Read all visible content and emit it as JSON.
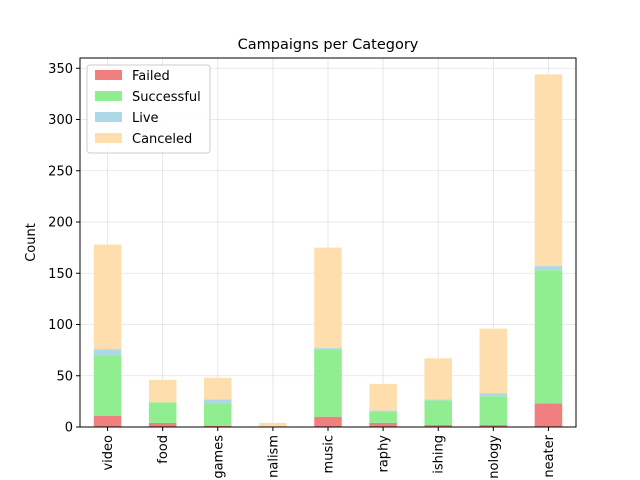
{
  "chart_data": {
    "type": "bar",
    "stacked": true,
    "title": "Campaigns per Category",
    "xlabel": "",
    "ylabel": "Count",
    "ylim": [
      0,
      360
    ],
    "yticks": [
      0,
      50,
      100,
      150,
      200,
      250,
      300,
      350
    ],
    "grid": true,
    "legend_position": "top-left",
    "categories": [
      "video",
      "food",
      "games",
      "journalism",
      "music",
      "photography",
      "publishing",
      "technology",
      "theater"
    ],
    "category_labels_visible": [
      "video",
      "food",
      "games",
      "nalism",
      "music",
      "raphy",
      "ishing",
      "nology",
      "neater"
    ],
    "series": [
      {
        "name": "Failed",
        "color": "#f08080",
        "values": [
          11,
          4,
          1,
          0,
          10,
          4,
          2,
          2,
          23
        ]
      },
      {
        "name": "Successful",
        "color": "#90ee90",
        "values": [
          59,
          20,
          22,
          0,
          66,
          11,
          24,
          28,
          130
        ]
      },
      {
        "name": "Live",
        "color": "#add8e6",
        "values": [
          6,
          0,
          4,
          0,
          1,
          1,
          1,
          3,
          4
        ]
      },
      {
        "name": "Canceled",
        "color": "#ffdead",
        "values": [
          102,
          22,
          21,
          4,
          98,
          26,
          40,
          63,
          187
        ]
      }
    ]
  }
}
